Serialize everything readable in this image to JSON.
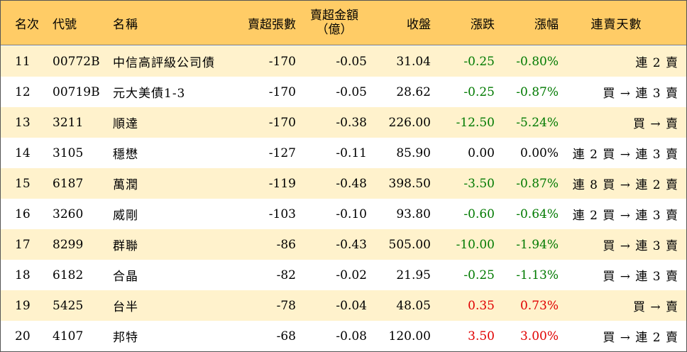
{
  "colors": {
    "header_bg": "#ffcc66",
    "odd_row_bg": "#fff2cc",
    "even_row_bg": "#ffffff",
    "down": "#007a00",
    "up": "#e00000"
  },
  "header": {
    "rank": "名次",
    "code": "代號",
    "name": "名稱",
    "net_sell_lots": "賣超張數",
    "net_sell_amount_line1": "賣超金額",
    "net_sell_amount_line2": "（億）",
    "close": "收盤",
    "change": "漲跌",
    "change_pct": "漲幅",
    "consecutive_days": "連賣天數"
  },
  "rows": [
    {
      "rank": "11",
      "code": "00772B",
      "name": "中信高評級公司債",
      "lots": "-170",
      "amount": "-0.05",
      "close": "31.04",
      "change": "-0.25",
      "pct": "-0.80%",
      "days": "連 2 賣",
      "dir": "down"
    },
    {
      "rank": "12",
      "code": "00719B",
      "name": "元大美債1-3",
      "lots": "-170",
      "amount": "-0.05",
      "close": "28.62",
      "change": "-0.25",
      "pct": "-0.87%",
      "days": "買 → 連 3 賣",
      "dir": "down"
    },
    {
      "rank": "13",
      "code": "3211",
      "name": "順達",
      "lots": "-170",
      "amount": "-0.38",
      "close": "226.00",
      "change": "-12.50",
      "pct": "-5.24%",
      "days": "買 → 賣",
      "dir": "down"
    },
    {
      "rank": "14",
      "code": "3105",
      "name": "穩懋",
      "lots": "-127",
      "amount": "-0.11",
      "close": "85.90",
      "change": "0.00",
      "pct": "0.00%",
      "days": "連 2 買 → 連 3 賣",
      "dir": "flat"
    },
    {
      "rank": "15",
      "code": "6187",
      "name": "萬潤",
      "lots": "-119",
      "amount": "-0.48",
      "close": "398.50",
      "change": "-3.50",
      "pct": "-0.87%",
      "days": "連 8 買 → 連 2 賣",
      "dir": "down"
    },
    {
      "rank": "16",
      "code": "3260",
      "name": "威剛",
      "lots": "-103",
      "amount": "-0.10",
      "close": "93.80",
      "change": "-0.60",
      "pct": "-0.64%",
      "days": "連 2 買 → 連 3 賣",
      "dir": "down"
    },
    {
      "rank": "17",
      "code": "8299",
      "name": "群聯",
      "lots": "-86",
      "amount": "-0.43",
      "close": "505.00",
      "change": "-10.00",
      "pct": "-1.94%",
      "days": "買 → 連 3 賣",
      "dir": "down"
    },
    {
      "rank": "18",
      "code": "6182",
      "name": "合晶",
      "lots": "-82",
      "amount": "-0.02",
      "close": "21.95",
      "change": "-0.25",
      "pct": "-1.13%",
      "days": "買 → 連 3 賣",
      "dir": "down"
    },
    {
      "rank": "19",
      "code": "5425",
      "name": "台半",
      "lots": "-78",
      "amount": "-0.04",
      "close": "48.05",
      "change": "0.35",
      "pct": "0.73%",
      "days": "買 → 賣",
      "dir": "up"
    },
    {
      "rank": "20",
      "code": "4107",
      "name": "邦特",
      "lots": "-68",
      "amount": "-0.08",
      "close": "120.00",
      "change": "3.50",
      "pct": "3.00%",
      "days": "買 → 連 2 賣",
      "dir": "up"
    }
  ]
}
